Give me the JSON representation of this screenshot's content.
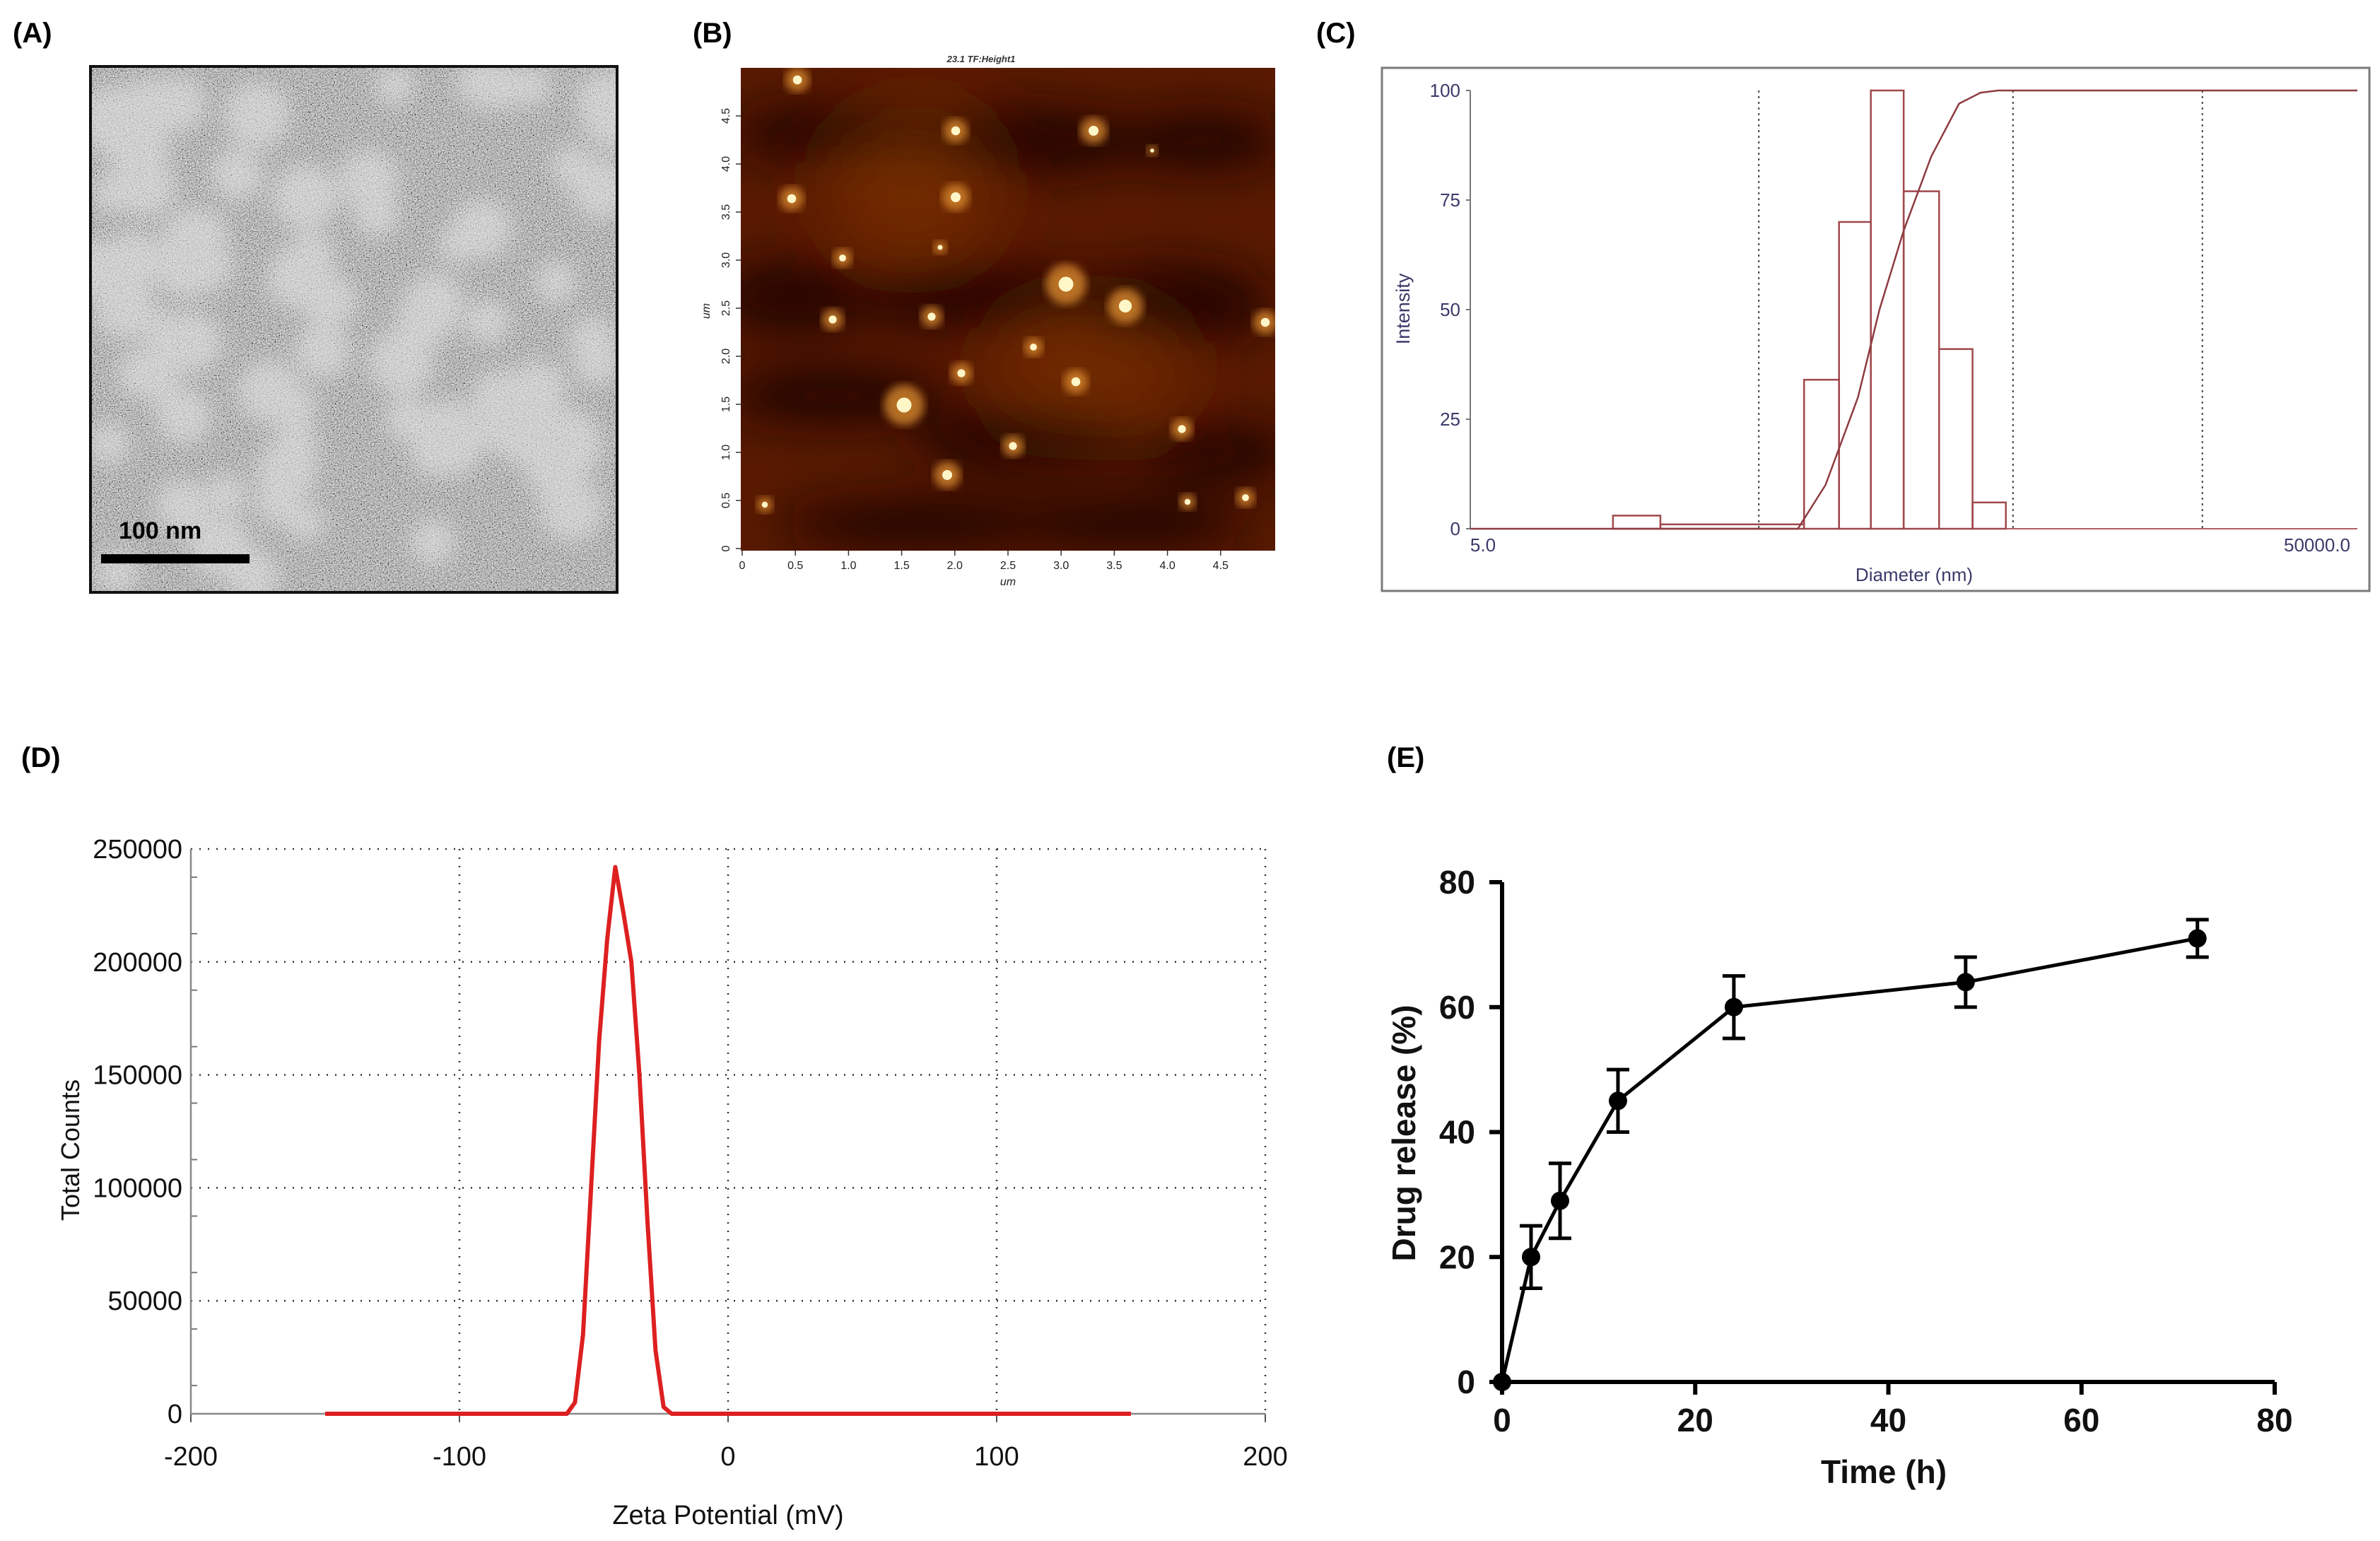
{
  "panels": {
    "a": {
      "label": "(A)",
      "scale_bar_label": "100 nm"
    },
    "b": {
      "label": "(B)",
      "image_title": "23.1 TF:Height1",
      "x_ticks": [
        "0",
        "0.5",
        "1.0",
        "1.5",
        "2.0",
        "2.5",
        "3.0",
        "3.5",
        "4.0",
        "4.5"
      ],
      "y_ticks": [
        "0",
        "0.5",
        "1.0",
        "1.5",
        "2.0",
        "2.5",
        "3.0",
        "3.5",
        "4.0",
        "4.5"
      ],
      "x_unit": "um",
      "y_unit": "um",
      "colormap": [
        "#1a0600",
        "#5a1a00",
        "#a04a05",
        "#e09030",
        "#fff6c8"
      ]
    },
    "c": {
      "label": "(C)"
    },
    "d": {
      "label": "(D)"
    },
    "e": {
      "label": "(E)"
    }
  },
  "chart_data": [
    {
      "id": "C",
      "type": "bar",
      "xlabel": "Diameter (nm)",
      "ylabel": "Intensity",
      "x_scale": "log",
      "xlim": [
        5.0,
        50000.0
      ],
      "x_tick_labels": [
        "5.0",
        "50000.0"
      ],
      "ylim": [
        0,
        100
      ],
      "y_ticks": [
        0,
        25,
        50,
        75,
        100
      ],
      "histogram": {
        "bins": [
          {
            "from": 22,
            "to": 36,
            "value": 3
          },
          {
            "from": 36,
            "to": 160,
            "value": 1
          },
          {
            "from": 160,
            "to": 230,
            "value": 34
          },
          {
            "from": 230,
            "to": 320,
            "value": 70
          },
          {
            "from": 320,
            "to": 450,
            "value": 100
          },
          {
            "from": 450,
            "to": 650,
            "value": 77
          },
          {
            "from": 650,
            "to": 920,
            "value": 41
          },
          {
            "from": 920,
            "to": 1300,
            "value": 6
          }
        ],
        "color": "#a0484c"
      },
      "cumulative": {
        "x": [
          5,
          150,
          200,
          280,
          350,
          450,
          600,
          800,
          1000,
          1200,
          1500,
          50000
        ],
        "y": [
          0,
          0,
          10,
          30,
          50,
          68,
          85,
          97,
          99.5,
          100,
          100,
          100
        ],
        "color": "#8e3b42"
      },
      "dotted_verticals": [
        100,
        1400,
        10000
      ]
    },
    {
      "id": "D",
      "type": "line",
      "xlabel": "Zeta Potential (mV)",
      "ylabel": "Total Counts",
      "xlim": [
        -200,
        200
      ],
      "ylim": [
        0,
        250000
      ],
      "x_ticks": [
        -200,
        -100,
        0,
        100,
        200
      ],
      "y_ticks": [
        0,
        50000,
        100000,
        150000,
        200000,
        250000
      ],
      "grid": true,
      "series": [
        {
          "color": "#dd2020",
          "x": [
            -150,
            -60,
            -57,
            -54,
            -51,
            -48,
            -45,
            -42,
            -39,
            -36,
            -33,
            -30,
            -27,
            -24,
            -21,
            -18,
            150
          ],
          "y": [
            0,
            0,
            5000,
            35000,
            100000,
            165000,
            210000,
            242000,
            222000,
            200000,
            150000,
            85000,
            28000,
            3000,
            0,
            0,
            0
          ]
        }
      ]
    },
    {
      "id": "E",
      "type": "line",
      "xlabel": "Time (h)",
      "ylabel": "Drug release (%)",
      "xlim": [
        0,
        80
      ],
      "ylim": [
        0,
        80
      ],
      "x_ticks": [
        0,
        20,
        40,
        60,
        80
      ],
      "y_ticks": [
        0,
        20,
        40,
        60,
        80
      ],
      "series": [
        {
          "color": "#000000",
          "x": [
            0,
            3,
            6,
            12,
            24,
            48,
            72
          ],
          "y": [
            0,
            20,
            29,
            45,
            60,
            64,
            71
          ],
          "error": [
            0,
            5,
            6,
            5,
            5,
            4,
            3
          ]
        }
      ]
    }
  ]
}
